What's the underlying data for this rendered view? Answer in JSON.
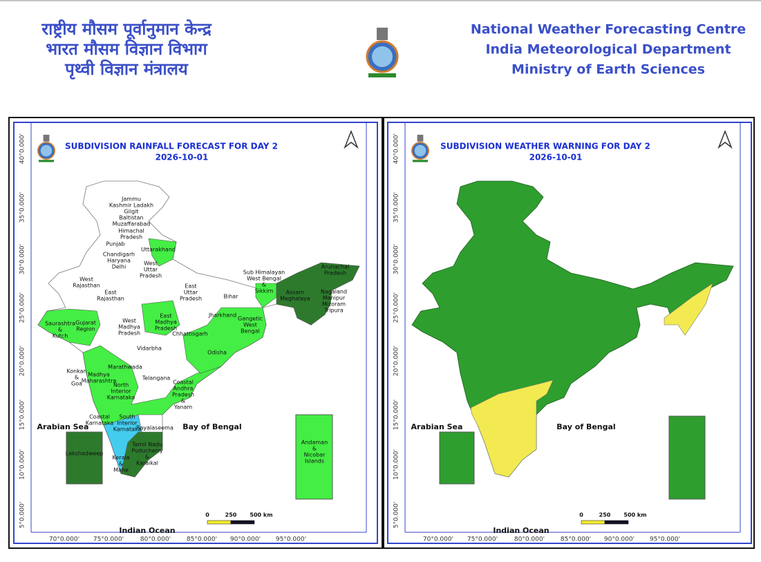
{
  "header": {
    "hindi": [
      "राष्ट्रीय मौसम पूर्वानुमान केन्द्र",
      "भारत मौसम विज्ञान विभाग",
      "पृथ्वी विज्ञान मंत्रालय"
    ],
    "english": [
      "National Weather Forecasting Centre",
      "India Meteorological Department",
      "Ministry of Earth Sciences"
    ]
  },
  "panels": [
    {
      "title": "SUBDIVISION RAINFALL FORECAST FOR DAY 2",
      "date": "2026-10-01",
      "latitudes": [
        "40°0.000'",
        "35°0.000'",
        "30°0.000'",
        "25°0.000'",
        "20°0.000'",
        "15°0.000'",
        "10°0.000'",
        "5°0.000'"
      ],
      "longitudes": [
        "70°0.000'",
        "75°0.000'",
        "80°0.000'",
        "85°0.000'",
        "90°0.000'",
        "95°0.000'"
      ],
      "seas": [
        "Arabian Sea",
        "Bay of Bengal",
        "Indian Ocean"
      ],
      "scale": [
        "0",
        "250",
        "500 km"
      ],
      "regions": [
        [
          "Jammu",
          "Kashmir Ladakh",
          "Gilgit",
          "Baltistan",
          "Muzaffarabad"
        ],
        [
          "Himachal",
          "Pradesh"
        ],
        [
          "Punjab"
        ],
        [
          "Uttarakhand"
        ],
        [
          "Chandigarh",
          "Haryana",
          "Delhi"
        ],
        [
          "West",
          "Uttar",
          "Pradesh"
        ],
        [
          "West",
          "Rajasthan"
        ],
        [
          "East",
          "Uttar",
          "Pradesh"
        ],
        [
          "East",
          "Rajasthan"
        ],
        [
          "Bihar"
        ],
        [
          "Sub Himalayan",
          "West Bengal",
          "&",
          "Sikkim"
        ],
        [
          "Arunachal",
          "Pradesh"
        ],
        [
          "Assam",
          "Meghalaya"
        ],
        [
          "Nagaland",
          "Manipur",
          "Mizoram",
          "Tripura"
        ],
        [
          "Jharkhand"
        ],
        [
          "Gangetic",
          "West",
          "Bengal"
        ],
        [
          "East",
          "Madhya",
          "Pradesh"
        ],
        [
          "West",
          "Madhya",
          "Pradesh"
        ],
        [
          "Saurashtra",
          "&",
          "Kutch"
        ],
        [
          "Gujarat",
          "Region"
        ],
        [
          "Chhattisgarh"
        ],
        [
          "Odisha"
        ],
        [
          "Vidarbha"
        ],
        [
          "Marathwada"
        ],
        [
          "Konkan",
          "&",
          "Goa"
        ],
        [
          "Madhya",
          "Maharashtra"
        ],
        [
          "Telangana"
        ],
        [
          "North",
          "Interior",
          "Karnataka"
        ],
        [
          "Coastal",
          "Andhra",
          "Pradesh",
          "&",
          "Yanam"
        ],
        [
          "Rayalaseema"
        ],
        [
          "Coastal",
          "Karnataka"
        ],
        [
          "South",
          "Interior",
          "Karnataka"
        ],
        [
          "Tamil Nadu",
          "Puducherry",
          "&",
          "Karaikal"
        ],
        [
          "Kerala",
          "&",
          "Mahe"
        ],
        [
          "Lakshadweep"
        ],
        [
          "Andaman",
          "&",
          "Nicobar",
          "Islands"
        ]
      ]
    },
    {
      "title": "SUBDIVISION WEATHER WARNING FOR DAY 2",
      "date": "2026-10-01",
      "latitudes": [
        "40°0.000'",
        "35°0.000'",
        "30°0.000'",
        "25°0.000'",
        "20°0.000'",
        "15°0.000'",
        "10°0.000'",
        "5°0.000'"
      ],
      "longitudes": [
        "70°0.000'",
        "75°0.000'",
        "80°0.000'",
        "85°0.000'",
        "90°0.000'",
        "95°0.000'"
      ],
      "seas": [
        "Arabian Sea",
        "Bay of Bengal",
        "Indian Ocean"
      ],
      "scale": [
        "0",
        "250",
        "500 km"
      ]
    }
  ]
}
